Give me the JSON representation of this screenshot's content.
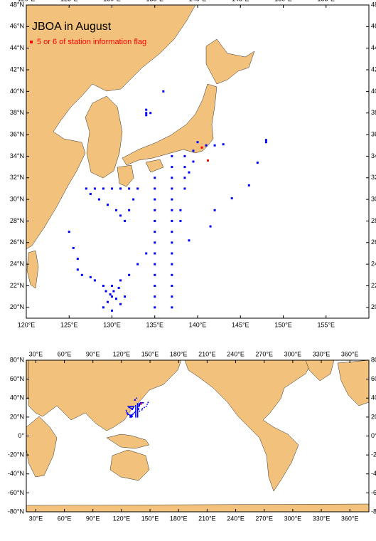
{
  "map_regional": {
    "title": "JBOA in August",
    "legend": "5 or 6 of station information flag",
    "xlim": [
      120,
      160
    ],
    "ylim": [
      19,
      48
    ],
    "xticks": [
      {
        "value": 120,
        "label": "120°E"
      },
      {
        "value": 125,
        "label": "125°E"
      },
      {
        "value": 130,
        "label": "130°E"
      },
      {
        "value": 135,
        "label": "135°E"
      },
      {
        "value": 140,
        "label": "140°E"
      },
      {
        "value": 145,
        "label": "145°E"
      },
      {
        "value": 150,
        "label": "150°E"
      },
      {
        "value": 155,
        "label": "155°E"
      }
    ],
    "yticks": [
      {
        "value": 20,
        "label": "20°N"
      },
      {
        "value": 22,
        "label": "22°N"
      },
      {
        "value": 24,
        "label": "24°N"
      },
      {
        "value": 26,
        "label": "26°N"
      },
      {
        "value": 28,
        "label": "28°N"
      },
      {
        "value": 30,
        "label": "30°N"
      },
      {
        "value": 32,
        "label": "32°N"
      },
      {
        "value": 34,
        "label": "34°N"
      },
      {
        "value": 36,
        "label": "36°N"
      },
      {
        "value": 38,
        "label": "38°N"
      },
      {
        "value": 40,
        "label": "40°N"
      },
      {
        "value": 42,
        "label": "42°N"
      },
      {
        "value": 44,
        "label": "44°N"
      },
      {
        "value": 46,
        "label": "46°N"
      },
      {
        "value": 48,
        "label": "48°N"
      }
    ],
    "station_color": "#0000ff",
    "flag_color": "#ff0000",
    "stations": {
      "lon": [
        127,
        128,
        129,
        130,
        131,
        132,
        133,
        127.5,
        128.5,
        129.5,
        130.5,
        131,
        132.5,
        132,
        131.5,
        135,
        135,
        135,
        135,
        135,
        135,
        135,
        135,
        135,
        135,
        135,
        135,
        135,
        137,
        137,
        137,
        137,
        137,
        137,
        137,
        137,
        137,
        137,
        137,
        137,
        137,
        137,
        137,
        138.5,
        138.5,
        138.5,
        138.5,
        138,
        138,
        139.5,
        139.5,
        139,
        134,
        134,
        134.5,
        134,
        136,
        140,
        141,
        142,
        143,
        148,
        148,
        147,
        146,
        144,
        142,
        141.5,
        139,
        125,
        125.5,
        126,
        126,
        126.5,
        127.5,
        128,
        129,
        130,
        131,
        132,
        133,
        134,
        130,
        129.5,
        130.5,
        129,
        130,
        131,
        130.2,
        129.8,
        130.8,
        131.5,
        129.3
      ],
      "lat": [
        31,
        31,
        31,
        31,
        31,
        31,
        31,
        30.5,
        30,
        29.5,
        29,
        28.5,
        30,
        29,
        28,
        32,
        31,
        30,
        29,
        28,
        27,
        26,
        25,
        24,
        23,
        22,
        21,
        20,
        34,
        33,
        32,
        31,
        30,
        29,
        28,
        27,
        26,
        25,
        24,
        23,
        22,
        21,
        20,
        34,
        33,
        32,
        31,
        29,
        28,
        34.5,
        33.5,
        32.5,
        38.3,
        38,
        38,
        37.8,
        40,
        35.3,
        35,
        35,
        35.1,
        35.5,
        35.3,
        33.4,
        31.3,
        30.1,
        29,
        27.5,
        26.2,
        27,
        25.5,
        24.5,
        23.5,
        23,
        22.8,
        22.5,
        22,
        22,
        22.5,
        23,
        24,
        25,
        21,
        20.5,
        20.8,
        20,
        19.7,
        20.3,
        21.5,
        21.2,
        21.8,
        21,
        21.5
      ]
    },
    "flagged": {
      "lon": [
        140.5,
        141.2
      ],
      "lat": [
        34.8,
        33.6
      ]
    }
  },
  "map_global": {
    "xlim": [
      20,
      380
    ],
    "ylim": [
      -80,
      80
    ],
    "xticks": [
      {
        "value": 30,
        "label": "30°E"
      },
      {
        "value": 60,
        "label": "60°E"
      },
      {
        "value": 90,
        "label": "90°E"
      },
      {
        "value": 120,
        "label": "120°E"
      },
      {
        "value": 150,
        "label": "150°E"
      },
      {
        "value": 180,
        "label": "180°E"
      },
      {
        "value": 210,
        "label": "210°E"
      },
      {
        "value": 240,
        "label": "240°E"
      },
      {
        "value": 270,
        "label": "270°E"
      },
      {
        "value": 300,
        "label": "300°E"
      },
      {
        "value": 330,
        "label": "330°E"
      },
      {
        "value": 360,
        "label": "360°E"
      }
    ],
    "yticks": [
      {
        "value": -80,
        "label": "-80°N"
      },
      {
        "value": -60,
        "label": "-60°N"
      },
      {
        "value": -40,
        "label": "-40°N"
      },
      {
        "value": -20,
        "label": "-20°N"
      },
      {
        "value": 0,
        "label": "0°"
      },
      {
        "value": 20,
        "label": "20°N"
      },
      {
        "value": 40,
        "label": "40°N"
      },
      {
        "value": 60,
        "label": "60°N"
      },
      {
        "value": 80,
        "label": "80°N"
      }
    ]
  }
}
